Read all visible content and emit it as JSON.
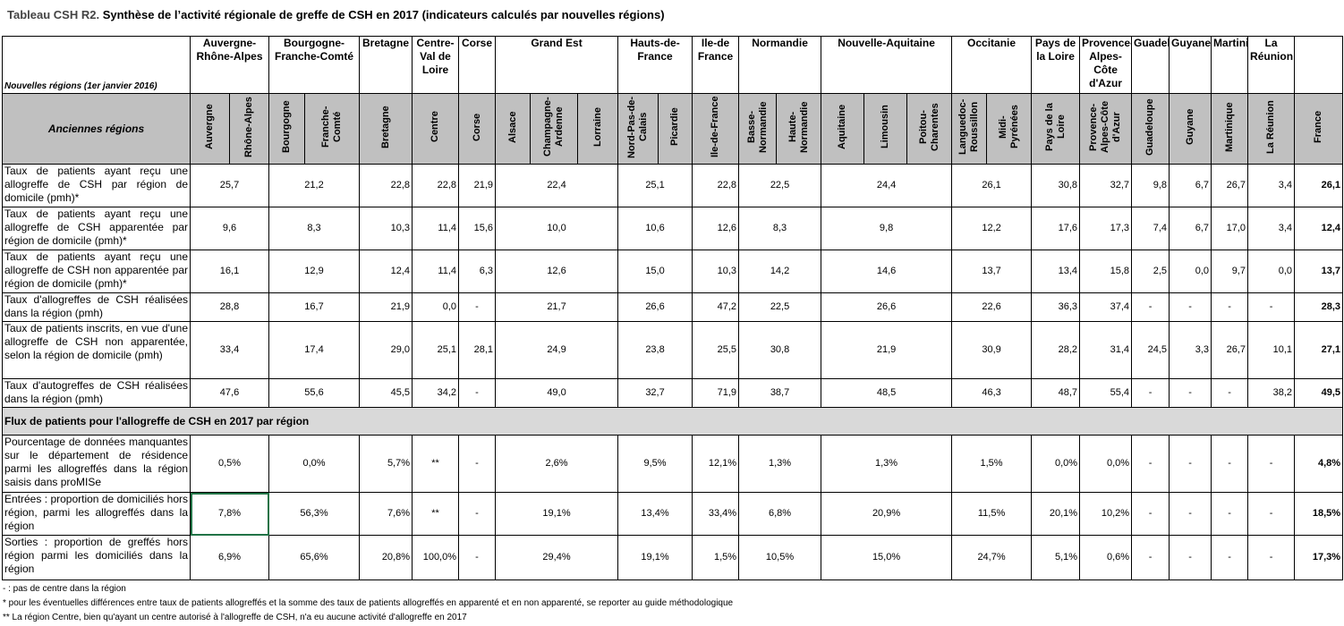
{
  "title": {
    "label": "Tableau CSH R2.",
    "text": "Synthèse de l’activité régionale de greffe de CSH en 2017 (indicateurs calculés par nouvelles régions)"
  },
  "table": {
    "new_regions_label": "Nouvelles régions (1er janvier 2016)",
    "old_regions_label": "Anciennes régions",
    "regions": [
      {
        "name": "Auvergne-Rhône-Alpes",
        "old": [
          "Auvergne",
          "Rhône-Alpes"
        ]
      },
      {
        "name": "Bourgogne-Franche-Comté",
        "old": [
          "Bourgogne",
          "Franche-Comté"
        ]
      },
      {
        "name": "Bretagne",
        "old": [
          "Bretagne"
        ]
      },
      {
        "name": "Centre-Val de Loire",
        "old": [
          "Centre"
        ]
      },
      {
        "name": "Corse",
        "old": [
          "Corse"
        ]
      },
      {
        "name": "Grand Est",
        "old": [
          "Alsace",
          "Champagne-Ardenne",
          "Lorraine"
        ]
      },
      {
        "name": "Hauts-de-France",
        "old": [
          "Nord-Pas-de-Calais",
          "Picardie"
        ]
      },
      {
        "name": "Ile-de France",
        "old": [
          "Ile-de-France"
        ]
      },
      {
        "name": "Normandie",
        "old": [
          "Basse-Normandie",
          "Haute-Normandie"
        ]
      },
      {
        "name": "Nouvelle-Aquitaine",
        "old": [
          "Aquitaine",
          "Limousin",
          "Poitou-Charentes"
        ]
      },
      {
        "name": "Occitanie",
        "old": [
          "Languedoc-Roussillon",
          "Midi-Pyrénées"
        ]
      },
      {
        "name": "Pays de la Loire",
        "old": [
          "Pays de la Loire"
        ]
      },
      {
        "name": "Provence-Alpes-Côte d'Azur",
        "old": [
          "Provence-Alpes-Côte d'Azur"
        ]
      },
      {
        "name": "Guadeloupe",
        "old": [
          "Guadeloupe"
        ]
      },
      {
        "name": "Guyane",
        "old": [
          "Guyane"
        ]
      },
      {
        "name": "Martinique",
        "old": [
          "Martinique"
        ]
      },
      {
        "name": "La Réunion",
        "old": [
          "La Réunion"
        ]
      },
      {
        "old": [
          "France"
        ]
      }
    ],
    "rows": [
      {
        "label": "Taux de patients ayant reçu une allogreffe de CSH par région de domicile (pmh)*",
        "values": [
          "25,7",
          "21,2",
          "22,8",
          "22,8",
          "21,9",
          "22,4",
          "25,1",
          "22,8",
          "22,5",
          "24,4",
          "26,1",
          "30,8",
          "32,7",
          "9,8",
          "6,7",
          "26,7",
          "3,4",
          "26,1"
        ]
      },
      {
        "label": "Taux de patients ayant reçu une allogreffe de CSH apparentée par région de domicile (pmh)*",
        "values": [
          "9,6",
          "8,3",
          "10,3",
          "11,4",
          "15,6",
          "10,0",
          "10,6",
          "12,6",
          "8,3",
          "9,8",
          "12,2",
          "17,6",
          "17,3",
          "7,4",
          "6,7",
          "17,0",
          "3,4",
          "12,4"
        ]
      },
      {
        "label": "Taux de patients ayant reçu une allogreffe de CSH non apparentée par région de domicile (pmh)*",
        "values": [
          "16,1",
          "12,9",
          "12,4",
          "11,4",
          "6,3",
          "12,6",
          "15,0",
          "10,3",
          "14,2",
          "14,6",
          "13,7",
          "13,4",
          "15,8",
          "2,5",
          "0,0",
          "9,7",
          "0,0",
          "13,7"
        ]
      },
      {
        "label": "Taux d'allogreffes de CSH réalisées dans la région (pmh)",
        "values": [
          "28,8",
          "16,7",
          "21,9",
          "0,0",
          "-",
          "21,7",
          "26,6",
          "47,2",
          "22,5",
          "26,6",
          "22,6",
          "36,3",
          "37,4",
          "-",
          "-",
          "-",
          "-",
          "28,3"
        ]
      },
      {
        "label": "Taux de patients inscrits, en vue d'une allogreffe de CSH non apparentée, selon la région de domicile (pmh)",
        "values": [
          "33,4",
          "17,4",
          "29,0",
          "25,1",
          "28,1",
          "24,9",
          "23,8",
          "25,5",
          "30,8",
          "21,9",
          "30,9",
          "28,2",
          "31,4",
          "24,5",
          "3,3",
          "26,7",
          "10,1",
          "27,1"
        ]
      },
      {
        "label": "Taux d'autogreffes de CSH réalisées dans la région (pmh)",
        "values": [
          "47,6",
          "55,6",
          "45,5",
          "34,2",
          "-",
          "49,0",
          "32,7",
          "71,9",
          "38,7",
          "48,5",
          "46,3",
          "48,7",
          "55,4",
          "-",
          "-",
          "-",
          "38,2",
          "49,5"
        ]
      }
    ],
    "section": "Flux de patients pour l'allogreffe de CSH en 2017 par région",
    "flow_rows": [
      {
        "label": "Pourcentage de données manquantes sur le département de résidence parmi les allogreffés dans la région saisis dans proMISe",
        "values": [
          "0,5%",
          "0,0%",
          "5,7%",
          "**",
          "-",
          "2,6%",
          "9,5%",
          "12,1%",
          "1,3%",
          "1,3%",
          "1,5%",
          "0,0%",
          "0,0%",
          "-",
          "-",
          "-",
          "-",
          "4,8%"
        ]
      },
      {
        "label": "Entrées : proportion de domiciliés hors région, parmi les allogreffés dans la région",
        "values": [
          "7,8%",
          "56,3%",
          "7,6%",
          "**",
          "-",
          "19,1%",
          "13,4%",
          "33,4%",
          "6,8%",
          "20,9%",
          "11,5%",
          "20,1%",
          "10,2%",
          "-",
          "-",
          "-",
          "-",
          "18,5%"
        ]
      },
      {
        "label": "Sorties : proportion de greffés hors région parmi les domiciliés dans la région",
        "values": [
          "6,9%",
          "65,6%",
          "20,8%",
          "100,0%",
          "-",
          "29,4%",
          "19,1%",
          "1,5%",
          "10,5%",
          "15,0%",
          "24,7%",
          "5,1%",
          "0,6%",
          "-",
          "-",
          "-",
          "-",
          "17,3%"
        ]
      }
    ]
  },
  "footnotes": [
    "- : pas de centre dans la région",
    "* pour les éventuelles différences entre taux de patients allogreffés et la somme des taux de patients allogreffés en apparenté et en non apparenté, se reporter au guide méthodologique",
    "** La région Centre, bien qu'ayant un centre autorisé à l'allogreffe de CSH, n'a eu aucune activité d'allogreffe en 2017"
  ]
}
